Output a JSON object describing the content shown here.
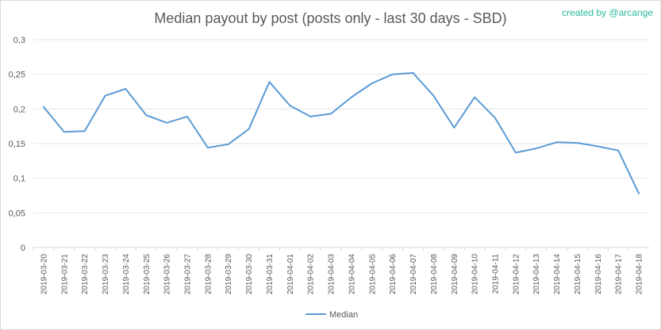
{
  "credit": "created by @arcange",
  "chart_data": {
    "type": "line",
    "title": "Median payout by post (posts only - last 30 days - SBD)",
    "xlabel": "",
    "ylabel": "",
    "ylim": [
      0,
      0.3
    ],
    "y_ticks": [
      "0",
      "0,05",
      "0,1",
      "0,15",
      "0,2",
      "0,25",
      "0,3"
    ],
    "grid": true,
    "legend_position": "bottom",
    "line_color": "#5b9bd5",
    "categories": [
      "2019-03-20",
      "2019-03-21",
      "2019-03-22",
      "2019-03-23",
      "2019-03-24",
      "2019-03-25",
      "2019-03-26",
      "2019-03-27",
      "2019-03-28",
      "2019-03-29",
      "2019-03-30",
      "2019-03-31",
      "2019-04-01",
      "2019-04-02",
      "2019-04-03",
      "2019-04-04",
      "2019-04-05",
      "2019-04-06",
      "2019-04-07",
      "2019-04-08",
      "2019-04-09",
      "2019-04-10",
      "2019-04-11",
      "2019-04-12",
      "2019-04-13",
      "2019-04-14",
      "2019-04-15",
      "2019-04-16",
      "2019-04-17",
      "2019-04-18"
    ],
    "series": [
      {
        "name": "Median",
        "values": [
          0.203,
          0.167,
          0.168,
          0.219,
          0.229,
          0.191,
          0.18,
          0.189,
          0.144,
          0.149,
          0.171,
          0.239,
          0.205,
          0.189,
          0.193,
          0.217,
          0.237,
          0.25,
          0.252,
          0.219,
          0.173,
          0.217,
          0.187,
          0.137,
          0.143,
          0.152,
          0.151,
          0.146,
          0.14,
          0.078
        ]
      }
    ]
  }
}
